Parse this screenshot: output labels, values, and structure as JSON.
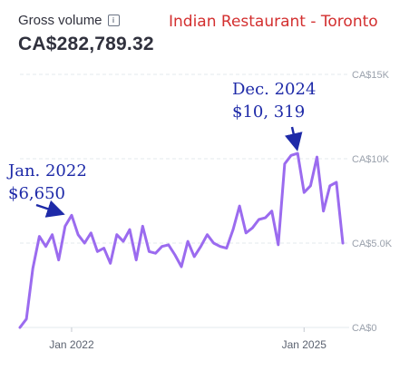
{
  "header": {
    "title": "Gross volume",
    "info_icon": "info-icon",
    "total": "CA$282,789.32",
    "restaurant": "Indian Restaurant - Toronto"
  },
  "chart_data": {
    "type": "line",
    "color": "#9b6bef",
    "ylim": [
      0,
      15000
    ],
    "yticks": [
      {
        "value": 15000,
        "label": "CA$15K"
      },
      {
        "value": 10000,
        "label": "CA$10K"
      },
      {
        "value": 5000,
        "label": "CA$5.0K"
      },
      {
        "value": 0,
        "label": "CA$0"
      }
    ],
    "xticks": [
      {
        "x": "2022-01",
        "label": "Jan 2022"
      },
      {
        "x": "2025-01",
        "label": "Jan 2025"
      }
    ],
    "grid": true,
    "x": [
      "2021-05",
      "2021-06",
      "2021-07",
      "2021-08",
      "2021-09",
      "2021-10",
      "2021-11",
      "2021-12",
      "2022-01",
      "2022-02",
      "2022-03",
      "2022-04",
      "2022-05",
      "2022-06",
      "2022-07",
      "2022-08",
      "2022-09",
      "2022-10",
      "2022-11",
      "2022-12",
      "2023-01",
      "2023-02",
      "2023-03",
      "2023-04",
      "2023-05",
      "2023-06",
      "2023-07",
      "2023-08",
      "2023-09",
      "2023-10",
      "2023-11",
      "2023-12",
      "2024-01",
      "2024-02",
      "2024-03",
      "2024-04",
      "2024-05",
      "2024-06",
      "2024-07",
      "2024-08",
      "2024-09",
      "2024-10",
      "2024-11",
      "2024-12",
      "2025-01",
      "2025-02",
      "2025-03",
      "2025-04",
      "2025-05",
      "2025-06",
      "2025-07"
    ],
    "values": [
      0,
      500,
      3500,
      5400,
      4800,
      5500,
      4000,
      6000,
      6650,
      5500,
      5000,
      5600,
      4500,
      4700,
      3800,
      5500,
      5100,
      5800,
      4000,
      6000,
      4500,
      4400,
      4800,
      4900,
      4300,
      3600,
      5100,
      4200,
      4800,
      5500,
      5000,
      4800,
      4700,
      5800,
      7200,
      5600,
      5900,
      6400,
      6500,
      6900,
      4900,
      9700,
      10200,
      10319,
      8000,
      8400,
      10100,
      6900,
      8400,
      8600,
      5000
    ],
    "annotations": [
      {
        "x": "2022-01",
        "value": 6650,
        "lines": [
          "Jan. 2022",
          "$6,650"
        ]
      },
      {
        "x": "2024-12",
        "value": 10319,
        "lines": [
          "Dec. 2024",
          "$10, 319"
        ]
      }
    ]
  }
}
